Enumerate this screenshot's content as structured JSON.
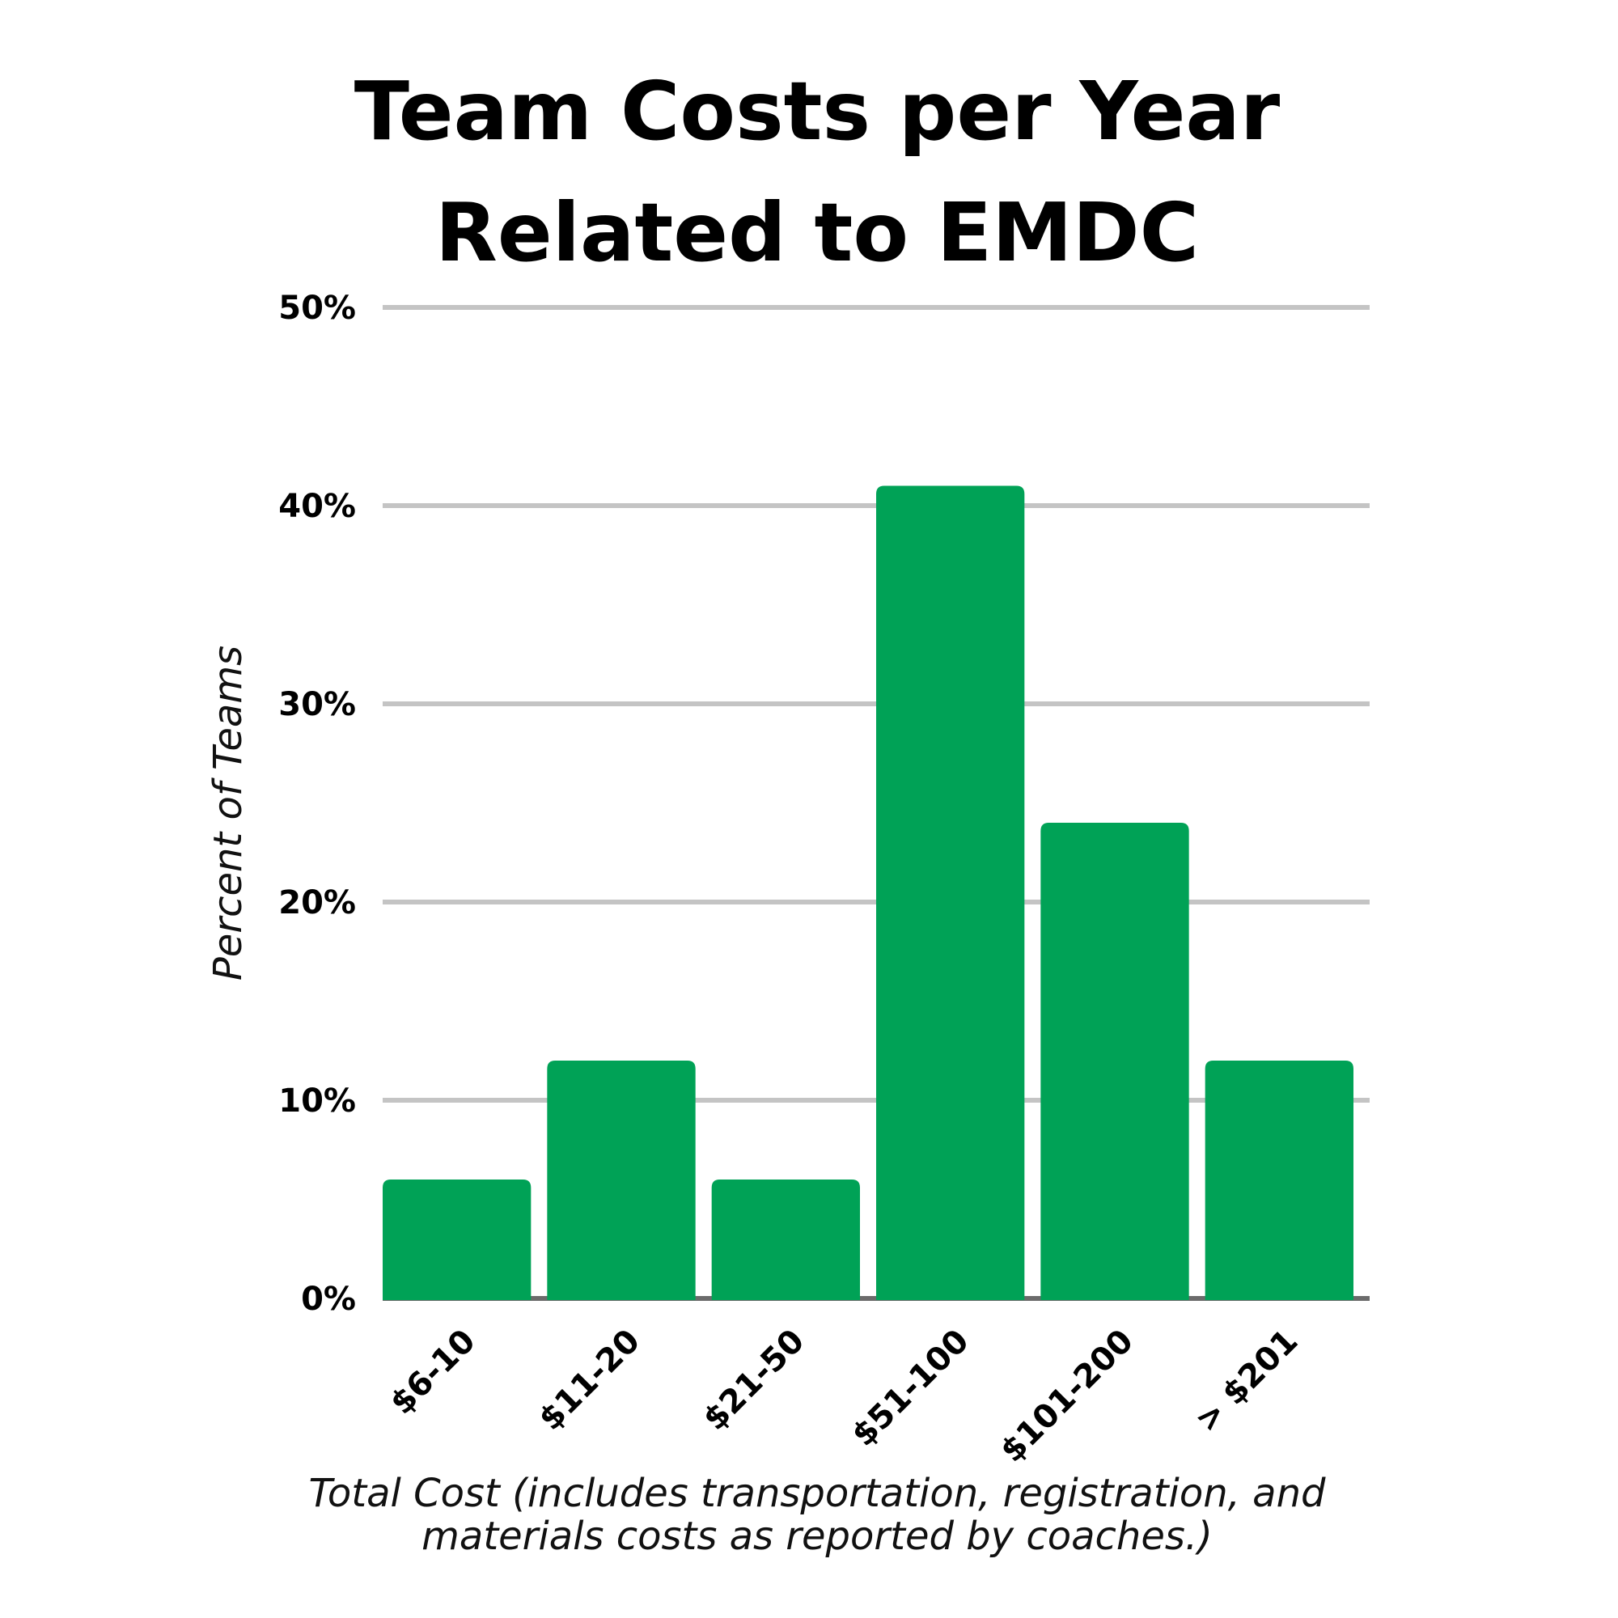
{
  "chart_data": {
    "type": "bar",
    "title_lines": [
      "Team Costs per Year",
      "Related to EMDC"
    ],
    "categories": [
      "$6-10",
      "$11-20",
      "$21-50",
      "$51-100",
      "$101-200",
      "> $201"
    ],
    "values": [
      6,
      12,
      6,
      41,
      24,
      12
    ],
    "ylabel": "Percent of  Teams",
    "xlabel_lines": [
      "Total Cost (includes transportation, registration, and",
      "materials costs as reported by coaches.)"
    ],
    "ylim": [
      0,
      50
    ],
    "yticks": [
      0,
      10,
      20,
      30,
      40,
      50
    ],
    "ytick_labels": [
      "0%",
      "10%",
      "20%",
      "30%",
      "40%",
      "50%"
    ],
    "grid": true,
    "bar_color": "#00a256",
    "grid_color": "#c4c4c4",
    "baseline_color": "#6b6b6b"
  }
}
